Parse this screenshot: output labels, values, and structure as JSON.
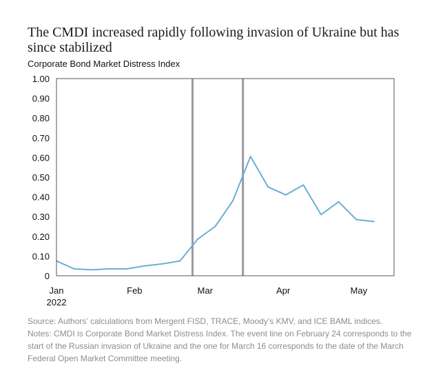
{
  "title": "The CMDI increased rapidly following invasion of Ukraine but has since stabilized",
  "chart_data": {
    "type": "line",
    "title": "Corporate Bond Market Distress Index",
    "xlabel": "",
    "ylabel": "",
    "x_tick_labels": [
      {
        "label": "Jan",
        "sublabel": "2022",
        "date": "2022-01-01"
      },
      {
        "label": "Feb",
        "date": "2022-02-01"
      },
      {
        "label": "Mar",
        "date": "2022-03-01"
      },
      {
        "label": "Apr",
        "date": "2022-04-01"
      },
      {
        "label": "May",
        "date": "2022-05-01"
      }
    ],
    "xlim": [
      "2022-01-01",
      "2022-05-15"
    ],
    "ylim": [
      0,
      1.0
    ],
    "y_ticks": [
      0,
      0.1,
      0.2,
      0.3,
      0.4,
      0.5,
      0.6,
      0.7,
      0.8,
      0.9,
      1.0
    ],
    "y_tick_labels": [
      "0",
      "0.10",
      "0.20",
      "0.30",
      "0.40",
      "0.50",
      "0.60",
      "0.70",
      "0.80",
      "0.90",
      "1.00"
    ],
    "event_lines": [
      {
        "date": "2022-02-24",
        "color": "#9a9aa2"
      },
      {
        "date": "2022-03-16",
        "color": "#9a9aa2"
      }
    ],
    "series": [
      {
        "color": "#6aaed6",
        "points": [
          {
            "x": "2022-01-01",
            "y": 0.075
          },
          {
            "x": "2022-01-08",
            "y": 0.035
          },
          {
            "x": "2022-01-15",
            "y": 0.03
          },
          {
            "x": "2022-01-22",
            "y": 0.035
          },
          {
            "x": "2022-01-29",
            "y": 0.035
          },
          {
            "x": "2022-02-05",
            "y": 0.05
          },
          {
            "x": "2022-02-12",
            "y": 0.06
          },
          {
            "x": "2022-02-19",
            "y": 0.075
          },
          {
            "x": "2022-02-26",
            "y": 0.185
          },
          {
            "x": "2022-03-05",
            "y": 0.25
          },
          {
            "x": "2022-03-12",
            "y": 0.38
          },
          {
            "x": "2022-03-19",
            "y": 0.605
          },
          {
            "x": "2022-03-26",
            "y": 0.45
          },
          {
            "x": "2022-04-02",
            "y": 0.41
          },
          {
            "x": "2022-04-09",
            "y": 0.46
          },
          {
            "x": "2022-04-16",
            "y": 0.31
          },
          {
            "x": "2022-04-23",
            "y": 0.375
          },
          {
            "x": "2022-04-30",
            "y": 0.285
          },
          {
            "x": "2022-05-07",
            "y": 0.275
          }
        ]
      }
    ],
    "grid": false,
    "legend": "none"
  },
  "footnotes": {
    "source": "Source: Authors’ calculations from Mergent FISD, TRACE, Moody’s KMV, and ICE BAML indices.",
    "notes": "Notes: CMDI is Corporate Bond Market Distress Index. The event line on February 24 corresponds to the start of the Russian invasion of Ukraine and the one for March 16 corresponds to the date of the March Federal Open Market Committee meeting."
  }
}
